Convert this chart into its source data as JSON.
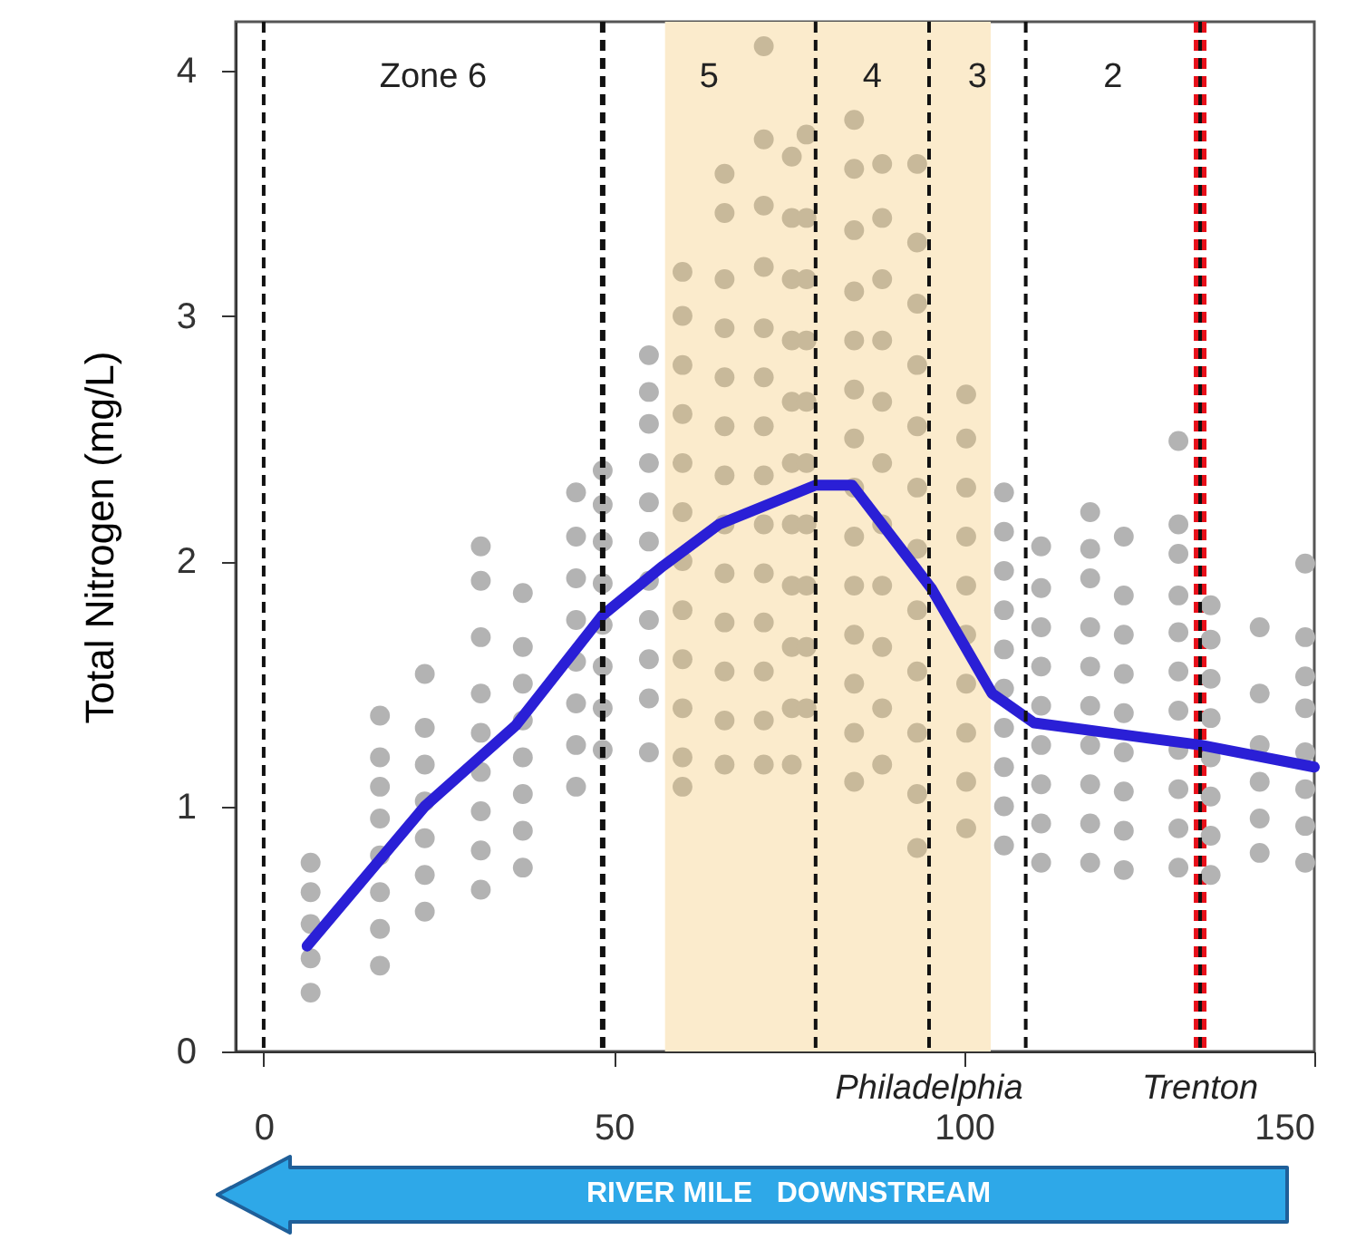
{
  "chart_data": {
    "type": "scatter",
    "ylabel": "Total Nitrogen (mg/L)",
    "xlabel": "RIVER MILE   DOWNSTREAM",
    "xlim": [
      -4,
      150
    ],
    "xticks": [
      0,
      50,
      100,
      150
    ],
    "ylim": [
      0,
      4.2
    ],
    "yticks": [
      0,
      1,
      2,
      3,
      4
    ],
    "grid": false,
    "marker": "circle",
    "series": [
      {
        "color": "#b3b3b3",
        "x": [
          6.7,
          6.7,
          6.7,
          6.7,
          6.7,
          16.6,
          16.6,
          16.6,
          16.6,
          16.6,
          16.6,
          16.6,
          16.6,
          23,
          23,
          23,
          23,
          23,
          23,
          23,
          31,
          31,
          31,
          31,
          31,
          31,
          31,
          31,
          31,
          37,
          37,
          37,
          37,
          37,
          37,
          37,
          37,
          44.6,
          44.6,
          44.6,
          44.6,
          44.6,
          44.6,
          44.6,
          44.6,
          48.4,
          48.4,
          48.4,
          48.4,
          48.4,
          48.4,
          48.4,
          48.4,
          55,
          55,
          55,
          55,
          55,
          55,
          55,
          55,
          55,
          55,
          55,
          105.7,
          105.7,
          105.7,
          105.7,
          105.7,
          105.7,
          105.7,
          105.7,
          105.7,
          105.7,
          111,
          111,
          111,
          111,
          111,
          111,
          111,
          111,
          111,
          118,
          118,
          118,
          118,
          118,
          118,
          118,
          118,
          118,
          118,
          122.8,
          122.8,
          122.8,
          122.8,
          122.8,
          122.8,
          122.8,
          122.8,
          122.8,
          130.6,
          130.6,
          130.6,
          130.6,
          130.6,
          130.6,
          130.6,
          130.6,
          130.6,
          130.6,
          130.6,
          135.2,
          135.2,
          135.2,
          135.2,
          135.2,
          135.2,
          135.2,
          135.2,
          142.2,
          142.2,
          142.2,
          142.2,
          142.2,
          142.2,
          148.7,
          148.7,
          148.7,
          148.7,
          148.7,
          148.7,
          148.7,
          148.7
        ],
        "values": [
          0.24,
          0.38,
          0.52,
          0.65,
          0.77,
          0.35,
          0.5,
          0.65,
          0.8,
          0.95,
          1.08,
          1.2,
          1.37,
          0.57,
          0.72,
          0.87,
          1.02,
          1.17,
          1.32,
          1.54,
          0.66,
          0.82,
          0.98,
          1.14,
          1.3,
          1.46,
          1.69,
          1.92,
          2.06,
          0.75,
          0.9,
          1.05,
          1.2,
          1.35,
          1.5,
          1.65,
          1.87,
          1.08,
          1.25,
          1.42,
          1.59,
          1.76,
          1.93,
          2.1,
          2.28,
          1.23,
          1.4,
          1.57,
          1.74,
          1.91,
          2.08,
          2.23,
          2.37,
          1.22,
          1.44,
          1.6,
          1.76,
          1.92,
          2.08,
          2.24,
          2.4,
          2.56,
          2.69,
          2.84,
          0.84,
          1.0,
          1.16,
          1.32,
          1.48,
          1.64,
          1.8,
          1.96,
          2.12,
          2.28,
          0.77,
          0.93,
          1.09,
          1.25,
          1.41,
          1.57,
          1.73,
          1.89,
          2.06,
          0.77,
          0.93,
          1.09,
          1.25,
          1.41,
          1.57,
          1.73,
          1.93,
          2.05,
          2.2,
          0.74,
          0.9,
          1.06,
          1.22,
          1.38,
          1.54,
          1.7,
          1.86,
          2.1,
          0.75,
          0.91,
          1.07,
          1.23,
          1.39,
          1.55,
          1.71,
          1.86,
          2.03,
          2.15,
          2.49,
          0.72,
          0.88,
          1.04,
          1.2,
          1.36,
          1.52,
          1.68,
          1.82,
          0.81,
          0.95,
          1.1,
          1.25,
          1.46,
          1.73,
          0.77,
          0.92,
          1.07,
          1.22,
          1.4,
          1.53,
          1.69,
          1.99
        ]
      },
      {
        "color": "#c8b99a",
        "x": [
          59.8,
          59.8,
          59.8,
          59.8,
          59.8,
          59.8,
          59.8,
          59.8,
          59.8,
          59.8,
          59.8,
          59.8,
          65.8,
          65.8,
          65.8,
          65.8,
          65.8,
          65.8,
          65.8,
          65.8,
          65.8,
          65.8,
          65.8,
          65.8,
          65.8,
          71.4,
          71.4,
          71.4,
          71.4,
          71.4,
          71.4,
          71.4,
          71.4,
          71.4,
          71.4,
          71.4,
          71.4,
          71.4,
          71.4,
          75.4,
          75.4,
          75.4,
          75.4,
          75.4,
          75.4,
          75.4,
          75.4,
          75.4,
          75.4,
          75.4,
          77.5,
          77.5,
          77.5,
          77.5,
          77.5,
          77.5,
          77.5,
          77.5,
          77.5,
          77.5,
          84.3,
          84.3,
          84.3,
          84.3,
          84.3,
          84.3,
          84.3,
          84.3,
          84.3,
          84.3,
          84.3,
          84.3,
          84.3,
          84.3,
          88.3,
          88.3,
          88.3,
          88.3,
          88.3,
          88.3,
          88.3,
          88.3,
          88.3,
          88.3,
          88.3,
          93.3,
          93.3,
          93.3,
          93.3,
          93.3,
          93.3,
          93.3,
          93.3,
          93.3,
          93.3,
          93.3,
          93.3,
          100.3,
          100.3,
          100.3,
          100.3,
          100.3,
          100.3,
          100.3,
          100.3,
          100.3,
          100.3
        ],
        "values": [
          1.08,
          1.2,
          1.4,
          1.6,
          1.8,
          2.0,
          2.2,
          2.4,
          2.6,
          2.8,
          3.0,
          3.18,
          1.17,
          1.35,
          1.55,
          1.75,
          1.95,
          2.15,
          2.35,
          2.55,
          2.75,
          2.95,
          3.15,
          3.42,
          3.58,
          1.17,
          1.35,
          1.55,
          1.75,
          1.95,
          2.15,
          2.35,
          2.55,
          2.75,
          2.95,
          3.2,
          3.45,
          3.72,
          4.1,
          1.17,
          1.4,
          1.65,
          1.9,
          2.15,
          2.4,
          2.65,
          2.9,
          3.15,
          3.4,
          3.65,
          1.4,
          1.65,
          1.9,
          2.15,
          2.4,
          2.65,
          2.9,
          3.15,
          3.4,
          3.74,
          1.1,
          1.3,
          1.5,
          1.7,
          1.9,
          2.1,
          2.3,
          2.5,
          2.7,
          2.9,
          3.1,
          3.35,
          3.6,
          3.8,
          1.17,
          1.4,
          1.65,
          1.9,
          2.15,
          2.4,
          2.65,
          2.9,
          3.15,
          3.4,
          3.62,
          0.83,
          1.05,
          1.3,
          1.55,
          1.8,
          2.05,
          2.3,
          2.55,
          2.8,
          3.05,
          3.3,
          3.62,
          0.91,
          1.1,
          1.3,
          1.5,
          1.7,
          1.9,
          2.1,
          2.3,
          2.5,
          2.68
        ]
      },
      {
        "type": "line",
        "color": "#2a1fd6",
        "marker": "none",
        "line_style": "solid",
        "x": [
          6.2,
          23,
          36,
          48.4,
          57,
          65,
          78.8,
          84,
          95.3,
          104,
          110,
          133.7,
          150
        ],
        "values": [
          0.43,
          1.0,
          1.33,
          1.78,
          1.98,
          2.15,
          2.31,
          2.31,
          1.89,
          1.46,
          1.34,
          1.25,
          1.16
        ]
      }
    ],
    "bands": [
      {
        "axis": "x",
        "from": 57.3,
        "to": 103.8,
        "color": "#fbebcc"
      }
    ],
    "ref_lines": [
      {
        "axis": "x",
        "value": 0,
        "line_style": "dashed"
      },
      {
        "axis": "x",
        "value": 48.4,
        "line_style": "dashed"
      },
      {
        "axis": "x",
        "value": 78.8,
        "line_style": "dashed"
      },
      {
        "axis": "x",
        "value": 95,
        "line_style": "dashed",
        "label": "Philadelphia"
      },
      {
        "axis": "x",
        "value": 108.8,
        "line_style": "dashed"
      },
      {
        "axis": "x",
        "value": 133.7,
        "line_style": "dashed",
        "color": "#e8101a",
        "label": "Trenton"
      }
    ],
    "annotations": [
      "Zone 6",
      "5",
      "4",
      "3",
      "2"
    ]
  }
}
